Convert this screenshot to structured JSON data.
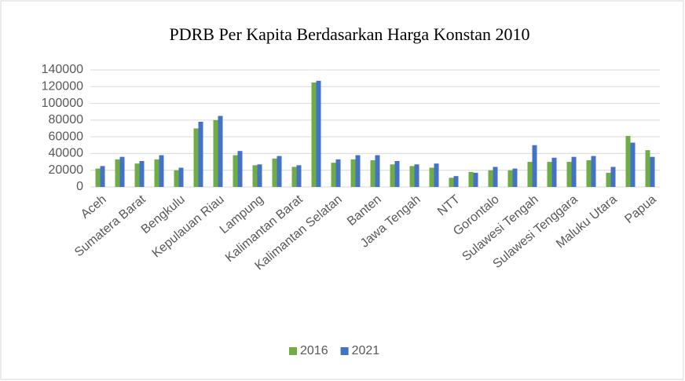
{
  "chart_data": {
    "type": "bar",
    "title": "PDRB Per Kapita Berdasarkan Harga Konstan 2010",
    "categories": [
      "Aceh",
      null,
      "Sumatera Barat",
      null,
      "Bengkulu",
      null,
      "Kepulauan Riau",
      null,
      "Lampung",
      null,
      "Kalimantan Barat",
      null,
      "Kalimantan Selatan",
      null,
      "Banten",
      null,
      "Jawa Tengah",
      null,
      "NTT",
      null,
      "Gorontalo",
      null,
      "Sulawesi Tengah",
      null,
      "Sulawesi Tenggara",
      null,
      "Maluku Utara",
      null,
      "Papua"
    ],
    "series": [
      {
        "name": "2016",
        "color": "#70ad47",
        "values": [
          22000,
          33000,
          28000,
          33000,
          20000,
          70000,
          80000,
          38000,
          26000,
          34000,
          24000,
          125000,
          29000,
          33000,
          32000,
          27000,
          25000,
          23000,
          11000,
          18000,
          20000,
          20000,
          30000,
          30000,
          30000,
          32000,
          17000,
          61000,
          44000
        ]
      },
      {
        "name": "2021",
        "color": "#4472c4",
        "values": [
          25000,
          36000,
          31000,
          38000,
          23000,
          78000,
          85000,
          43000,
          27000,
          37000,
          26000,
          127000,
          33000,
          38000,
          38000,
          31000,
          27000,
          28000,
          13000,
          17000,
          24000,
          22000,
          50000,
          35000,
          36000,
          37000,
          24000,
          53000,
          36000
        ]
      }
    ],
    "ylim": [
      0,
      140000
    ],
    "yticks": [
      0,
      20000,
      40000,
      60000,
      80000,
      100000,
      120000,
      140000
    ],
    "grid": true,
    "legend": "bottom"
  }
}
